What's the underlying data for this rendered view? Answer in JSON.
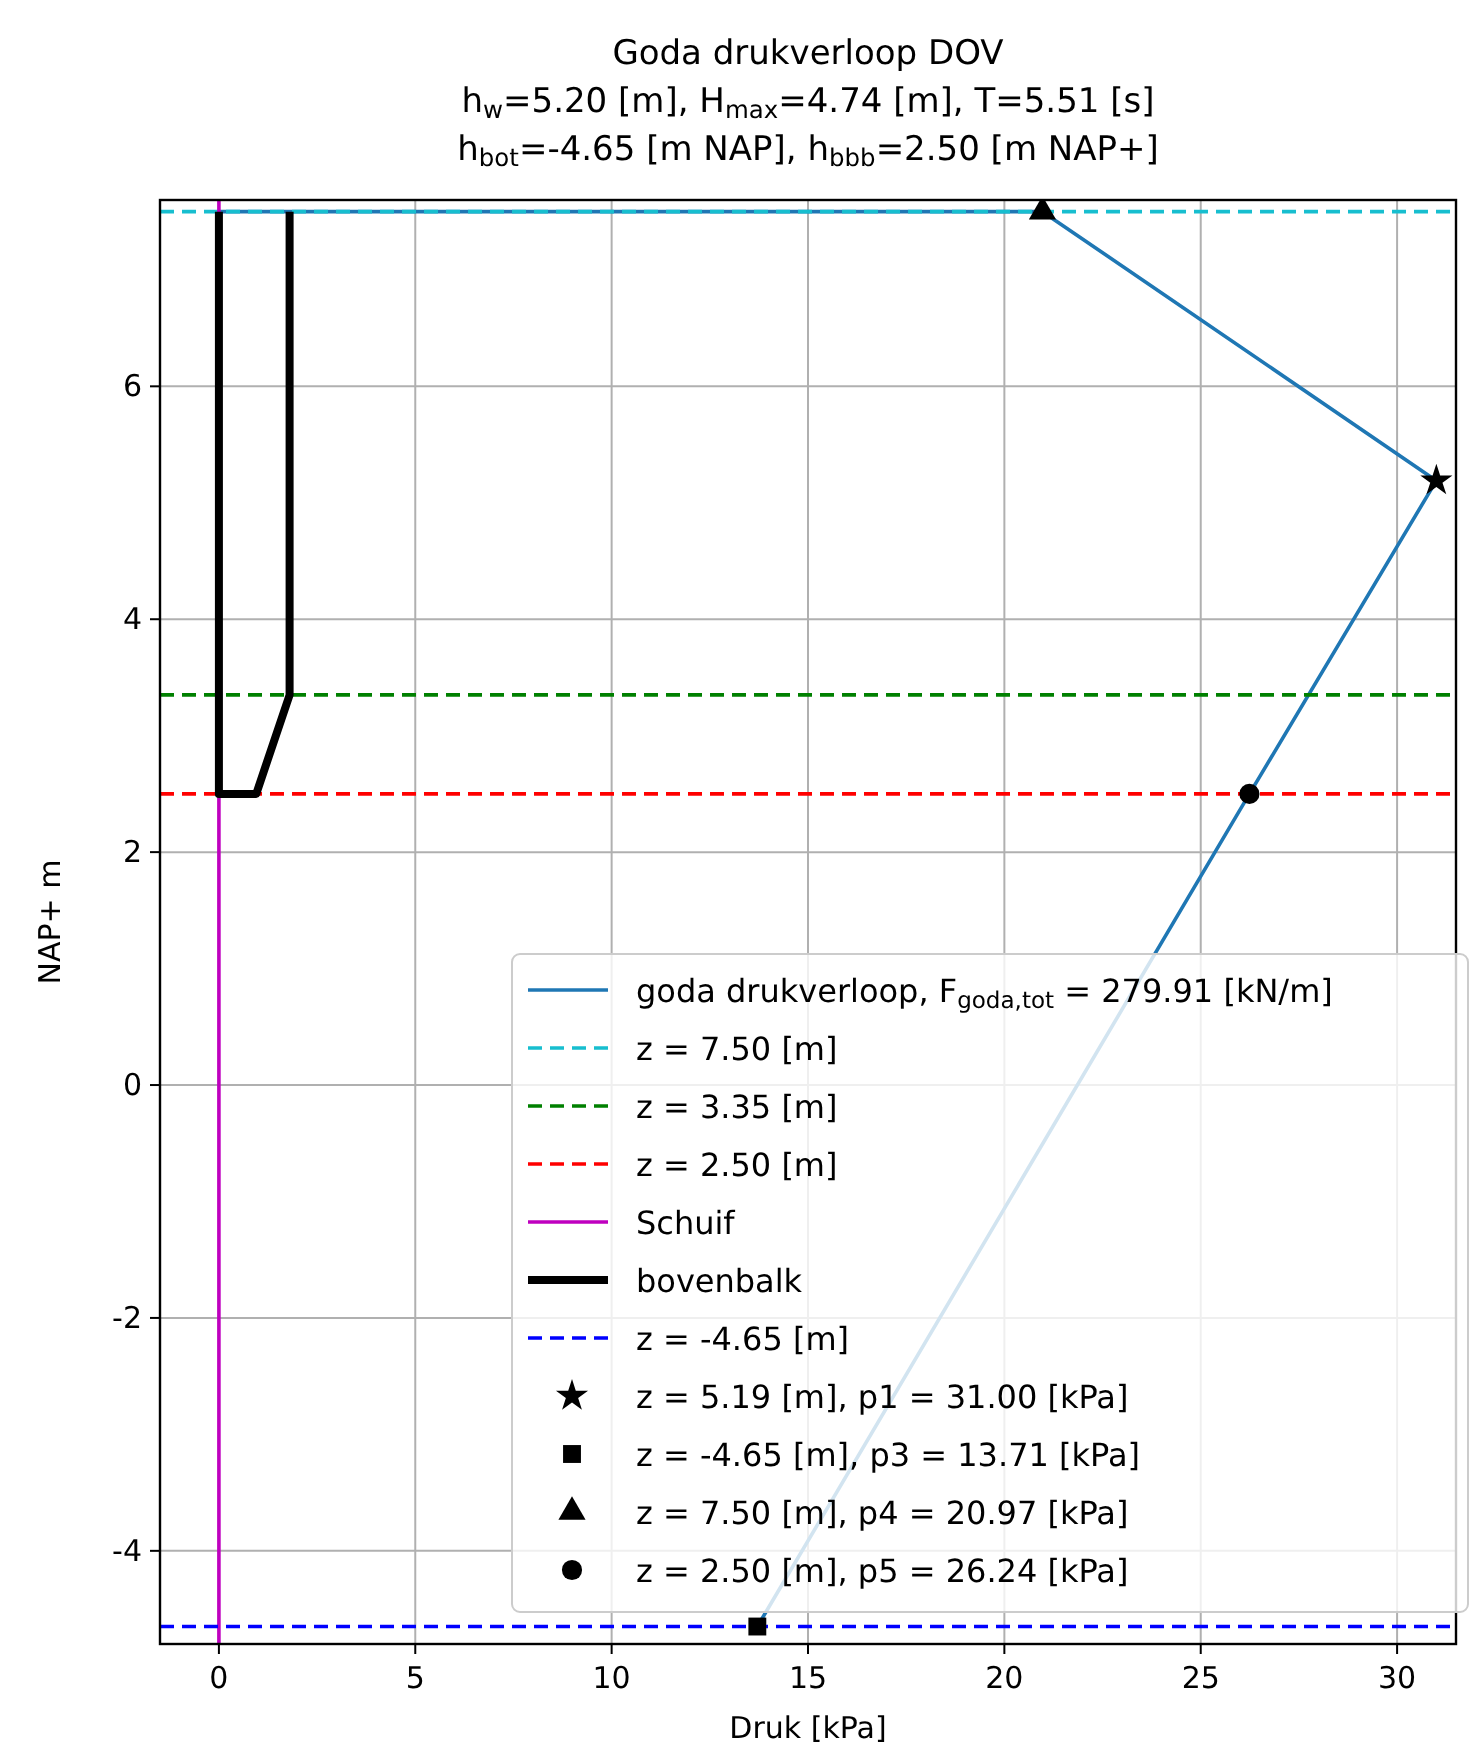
{
  "chart_data": {
    "type": "line",
    "title": "Goda drukverloop DOV",
    "subtitle": "h$_{w}$=5.20 [m], H$_{max}$=4.74 [m], T=5.51 [s]\nh$_{bot}$=-4.65 [m NAP], h$_{bbb}$=2.50 [m NAP+]",
    "xlabel": "Druk [kPa]",
    "ylabel": "NAP+ m",
    "xlim": [
      -1.5,
      31.5
    ],
    "ylim": [
      -4.8,
      7.6
    ],
    "xticks": [
      0,
      5,
      10,
      15,
      20,
      25,
      30
    ],
    "yticks": [
      -4,
      -2,
      0,
      2,
      4,
      6
    ],
    "grid": true,
    "legend": "bottom right",
    "marker": "none",
    "series": [
      {
        "name": "goda drukverloop, F$_{goda,tot}$ = 279.91 [kN/m]",
        "color": "#1f77b4",
        "x": [
          0,
          20.97,
          31.0,
          26.24,
          13.71
        ],
        "values": [
          7.5,
          7.5,
          5.19,
          2.5,
          -4.65
        ],
        "line_style": "solid"
      },
      {
        "name": "z = 7.50 [m]",
        "color": "#17becf",
        "x": [
          -1.5,
          31.5
        ],
        "values": [
          7.5,
          7.5
        ],
        "line_style": "dashed"
      },
      {
        "name": "z = 3.35 [m]",
        "color": "#008000",
        "x": [
          -1.5,
          31.5
        ],
        "values": [
          3.35,
          3.35
        ],
        "line_style": "dashed"
      },
      {
        "name": "z = 2.50 [m]",
        "color": "#ff0000",
        "x": [
          -1.5,
          31.5
        ],
        "values": [
          2.5,
          2.5
        ],
        "line_style": "dashed"
      },
      {
        "name": "Schuif",
        "color": "#bf00bf",
        "x": [
          0,
          0
        ],
        "values": [
          -4.8,
          7.6
        ],
        "line_style": "solid"
      },
      {
        "name": "bovenbalk",
        "color": "#000000",
        "x": [
          0,
          0,
          0.95,
          1.8,
          1.8
        ],
        "values": [
          7.5,
          2.5,
          2.5,
          3.35,
          7.5
        ],
        "line_style": "solid"
      },
      {
        "name": "z = -4.65 [m]",
        "color": "#0000ff",
        "x": [
          -1.5,
          31.5
        ],
        "values": [
          -4.65,
          -4.65
        ],
        "line_style": "dashed"
      },
      {
        "name": "z = 5.19 [m], p1 = 31.00 [kPa]",
        "type": "scatter",
        "marker": "star",
        "color": "#000000",
        "x": [
          31.0
        ],
        "values": [
          5.19
        ]
      },
      {
        "name": "z = -4.65 [m], p3 = 13.71 [kPa]",
        "type": "scatter",
        "marker": "square",
        "color": "#000000",
        "x": [
          13.71
        ],
        "values": [
          -4.65
        ]
      },
      {
        "name": "z = 7.50 [m], p4 = 20.97 [kPa]",
        "type": "scatter",
        "marker": "triangle",
        "color": "#000000",
        "x": [
          20.97
        ],
        "values": [
          7.5
        ]
      },
      {
        "name": "z = 2.50 [m], p5 = 26.24 [kPa]",
        "type": "scatter",
        "marker": "circle",
        "color": "#000000",
        "x": [
          26.24
        ],
        "values": [
          2.5
        ]
      }
    ]
  }
}
